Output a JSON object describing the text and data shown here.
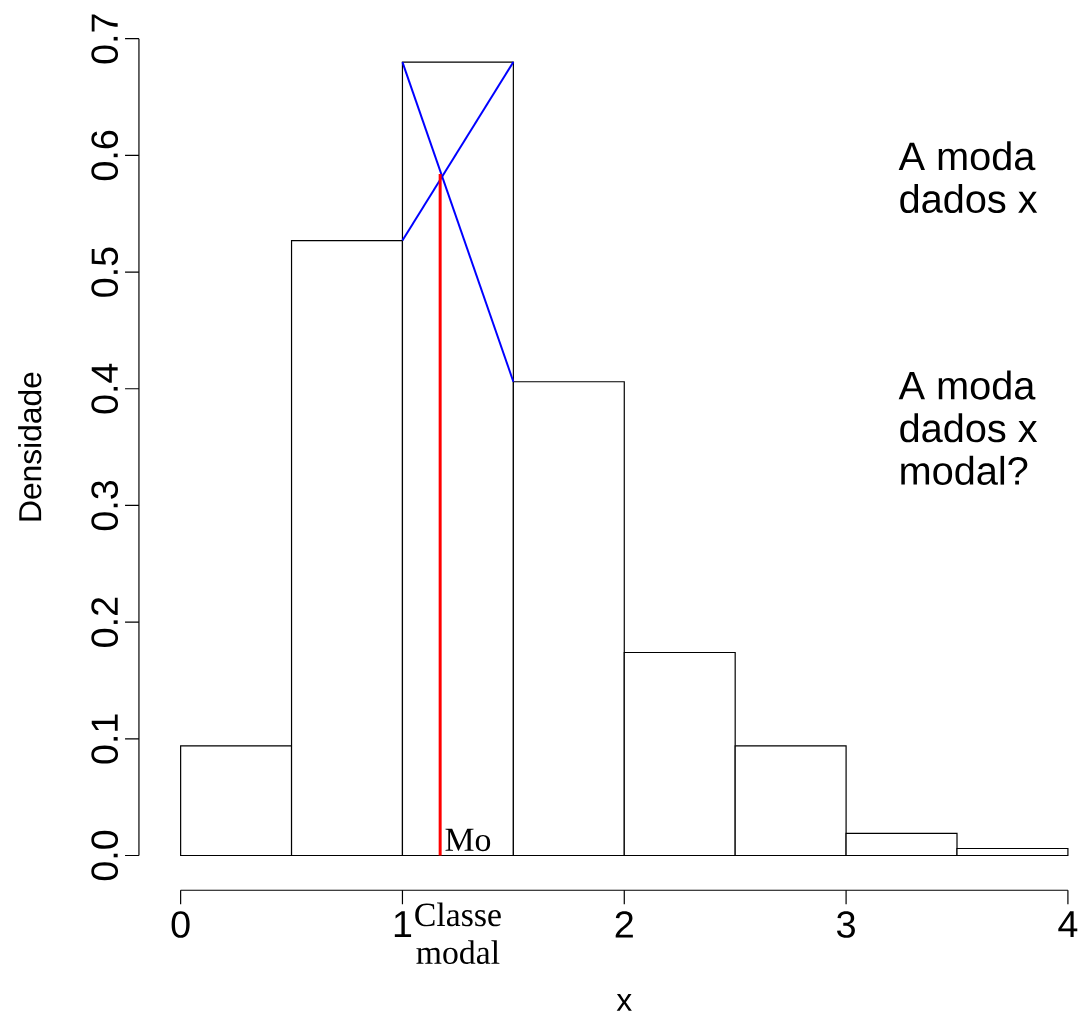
{
  "chart_data": {
    "type": "histogram",
    "xlabel": "x",
    "ylabel": "Densidade",
    "bins": [
      0,
      0.5,
      1,
      1.5,
      2,
      2.5,
      3,
      3.5,
      4
    ],
    "values": [
      0.094,
      0.527,
      0.68,
      0.406,
      0.174,
      0.094,
      0.019,
      0.006
    ],
    "color": "#000000",
    "series": [
      {
        "type": "line",
        "color": "#0000ff",
        "x": [
          1,
          1.5
        ],
        "values": [
          0.527,
          0.68
        ]
      },
      {
        "type": "line",
        "color": "#0000ff",
        "x": [
          1,
          1.5
        ],
        "values": [
          0.68,
          0.406
        ]
      },
      {
        "type": "line",
        "color": "#ff0000",
        "x": [
          1.17,
          1.17
        ],
        "values": [
          0,
          0.584
        ]
      }
    ],
    "xlim": [
      0,
      4
    ],
    "ylim": [
      0,
      0.7
    ],
    "xticks": [
      0,
      1,
      2,
      3,
      4
    ],
    "yticks": [
      {
        "value": 0,
        "label": "0.0"
      },
      0.1,
      0.2,
      0.3,
      0.4,
      0.5,
      0.6,
      0.7
    ],
    "annotations": [
      {
        "text": "Mo",
        "x": 1.17,
        "y": 0
      },
      "Classe modal",
      "A moda",
      "dados x",
      "A moda",
      "dados x",
      "modal?"
    ]
  }
}
